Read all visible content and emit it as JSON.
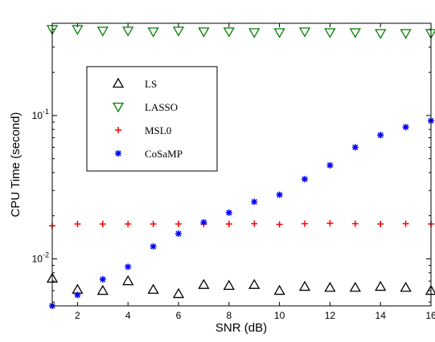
{
  "chart_data": {
    "type": "scatter",
    "title": "",
    "xlabel": "SNR (dB)",
    "ylabel": "CPU Time (second)",
    "xlim": [
      1,
      16
    ],
    "ylim": [
      0.0047,
      0.44
    ],
    "yscale": "log",
    "grid": false,
    "legend_position": "upper-left",
    "xticks": [
      2,
      4,
      6,
      8,
      10,
      12,
      14,
      16
    ],
    "xtick_labels": [
      "2",
      "4",
      "6",
      "8",
      "10",
      "12",
      "14",
      "16"
    ],
    "yticks": [
      0.01,
      0.1
    ],
    "ytick_labels": [
      {
        "base": "10",
        "exp": "-2"
      },
      {
        "base": "10",
        "exp": "-1"
      }
    ],
    "x": [
      1,
      2,
      3,
      4,
      5,
      6,
      7,
      8,
      9,
      10,
      11,
      12,
      13,
      14,
      15,
      16
    ],
    "series": [
      {
        "name": "LS",
        "marker": "triangle-up",
        "color": "#000000",
        "values": [
          0.0073,
          0.0061,
          0.006,
          0.007,
          0.0061,
          0.0057,
          0.0066,
          0.0065,
          0.0066,
          0.006,
          0.0064,
          0.0063,
          0.0063,
          0.0064,
          0.0063,
          0.006
        ]
      },
      {
        "name": "LASSO",
        "marker": "triangle-down",
        "color": "#008000",
        "values": [
          0.4,
          0.4,
          0.39,
          0.39,
          0.385,
          0.39,
          0.385,
          0.385,
          0.38,
          0.38,
          0.385,
          0.38,
          0.38,
          0.375,
          0.375,
          0.375
        ]
      },
      {
        "name": "MSL0",
        "marker": "plus",
        "color": "#ff0000",
        "values": [
          0.017,
          0.0175,
          0.0175,
          0.0175,
          0.0175,
          0.0175,
          0.0175,
          0.0175,
          0.0176,
          0.0174,
          0.0176,
          0.0177,
          0.0176,
          0.0175,
          0.0176,
          0.0175
        ]
      },
      {
        "name": "CoSaMP",
        "marker": "star",
        "color": "#0000ff",
        "values": [
          0.0047,
          0.0056,
          0.0072,
          0.0088,
          0.0122,
          0.015,
          0.018,
          0.021,
          0.025,
          0.028,
          0.036,
          0.045,
          0.06,
          0.073,
          0.083,
          0.092
        ]
      }
    ]
  }
}
